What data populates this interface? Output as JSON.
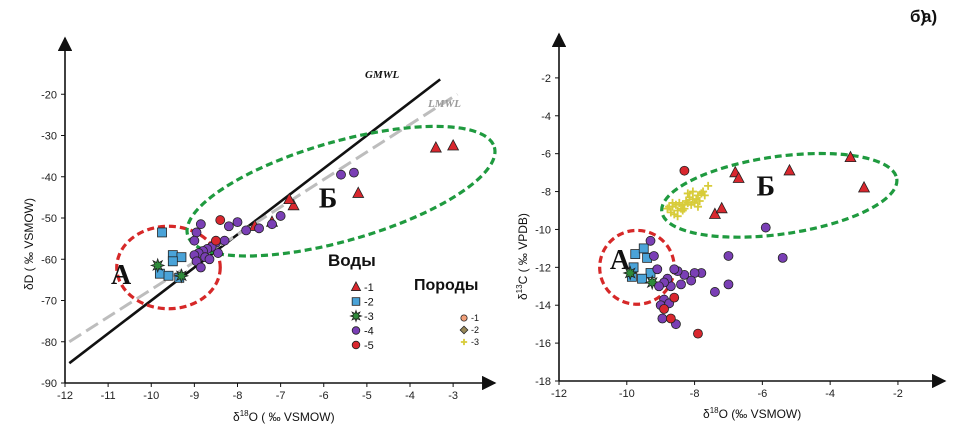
{
  "colors": {
    "red": "#d9272e",
    "blue": "#4aa3d8",
    "green": "#2e8b3a",
    "purple": "#7a3fb5",
    "orange": "#f2a07a",
    "olive": "#9a8a5a",
    "yellow": "#d8cc3a",
    "ellipseRed": "#d62828",
    "ellipseGreen": "#1f9a3f",
    "gmwl": "#111111",
    "lmwl": "#bdbdbd"
  },
  "chart_data": [
    {
      "panel": "а)",
      "type": "scatter",
      "xlabel_main": "δ",
      "xlabel_sup": "18",
      "xlabel_rest": "O ( ‰ VSMOW)",
      "ylabel": "δD ( ‰ VSMOW)",
      "xlim": [
        -12,
        -2.4
      ],
      "ylim": [
        -90,
        -10
      ],
      "xticks": [
        -12,
        -11,
        -10,
        -9,
        -8,
        -7,
        -6,
        -5,
        -4,
        -3
      ],
      "xtick_labels": [
        "-12",
        "-11",
        "-10",
        "-9",
        "-8",
        "-7",
        "-6",
        "-5",
        "-4",
        "-3"
      ],
      "yticks": [
        -90,
        -80,
        -70,
        -60,
        -50,
        -40,
        -30,
        -20
      ],
      "ytick_labels": [
        "-90",
        "-80",
        "-70",
        "-60",
        "-50",
        "-40",
        "-30",
        "-20"
      ],
      "lines": [
        {
          "name": "GMWL",
          "x": [
            -11.9,
            -3.3
          ],
          "y": [
            -85.2,
            -16.4
          ]
        },
        {
          "name": "LMWL",
          "x": [
            -11.9,
            -2.9
          ],
          "y": [
            -80,
            -20
          ]
        }
      ],
      "clusters": [
        {
          "label": "А",
          "cx": -9.6,
          "cy": -62,
          "rx": 1.2,
          "ry": 10,
          "angle": 0,
          "color": "red",
          "label_x": -10.7,
          "label_y": -66
        },
        {
          "label": "Б",
          "cx": -5.6,
          "cy": -43.5,
          "rx": 3.7,
          "ry": 12,
          "angle": -16,
          "color": "green",
          "label_x": -5.9,
          "label_y": -47.5
        }
      ],
      "series": [
        {
          "name": "-1",
          "marker": "triangle",
          "color": "red",
          "x": [
            -3.4,
            -3.0,
            -5.2,
            -6.7,
            -6.8,
            -7.2,
            -7.6
          ],
          "y": [
            -33,
            -32.5,
            -44,
            -47,
            -45.5,
            -51,
            -52
          ]
        },
        {
          "name": "-2",
          "marker": "square",
          "color": "blue",
          "x": [
            -9.75,
            -9.5,
            -9.3,
            -9.5,
            -9.8,
            -9.35,
            -9.6
          ],
          "y": [
            -53.5,
            -59,
            -59.5,
            -60.5,
            -63.5,
            -64.5,
            -64
          ]
        },
        {
          "name": "-3",
          "marker": "star",
          "color": "green",
          "x": [
            -9.85,
            -9.3
          ],
          "y": [
            -61.5,
            -64
          ]
        },
        {
          "name": "-4",
          "marker": "circle",
          "color": "purple",
          "x": [
            -5.6,
            -5.3,
            -7.0,
            -7.2,
            -7.5,
            -7.8,
            -8.0,
            -8.2,
            -8.3,
            -8.5,
            -8.6,
            -8.7,
            -8.8,
            -8.9,
            -9.0,
            -8.75,
            -8.85,
            -8.95,
            -9.0,
            -8.95,
            -8.85,
            -8.65,
            -8.45
          ],
          "y": [
            -39.5,
            -39,
            -49.5,
            -51.5,
            -52.5,
            -53,
            -51,
            -52,
            -55.5,
            -56,
            -57,
            -57.5,
            -58,
            -58.5,
            -59,
            -59.5,
            -51.5,
            -53.5,
            -55.5,
            -60.5,
            -62,
            -60,
            -58.5
          ]
        },
        {
          "name": "-5",
          "marker": "circle",
          "color": "red",
          "x": [
            -8.4,
            -8.5
          ],
          "y": [
            -50.5,
            -55.5
          ]
        }
      ],
      "legend_title": "Воды",
      "legend_title2": "Породы",
      "legend_rock": [
        {
          "name": "-1",
          "marker": "circle",
          "color": "orange"
        },
        {
          "name": "-2",
          "marker": "diamond",
          "color": "olive"
        },
        {
          "name": "-3",
          "marker": "plus",
          "color": "yellow"
        }
      ]
    },
    {
      "panel": "б)",
      "type": "scatter",
      "xlabel_main": "δ",
      "xlabel_sup": "18",
      "xlabel_rest": "O (‰ VSMOW)",
      "ylabel_main": "δ",
      "ylabel_sup": "13",
      "ylabel_rest": "C ( ‰ VPDB)",
      "xlim": [
        -12,
        -0.7
      ],
      "ylim": [
        -18,
        0
      ],
      "xticks": [
        -12,
        -10,
        -8,
        -6,
        -4,
        -2
      ],
      "xtick_labels": [
        "-12",
        "-10",
        "-8",
        "-6",
        "-4",
        "-2"
      ],
      "yticks": [
        -18,
        -16,
        -14,
        -12,
        -10,
        -8,
        -6,
        -4,
        -2
      ],
      "ytick_labels": [
        "-18",
        "-16",
        "-14",
        "-12",
        "-10",
        "-8",
        "-6",
        "-4",
        "-2"
      ],
      "clusters": [
        {
          "label": "А",
          "cx": -9.7,
          "cy": -12,
          "rx": 1.1,
          "ry": 1.95,
          "angle": 0,
          "color": "red",
          "label_x": -10.2,
          "label_y": -12.1
        },
        {
          "label": "Б",
          "cx": -5.5,
          "cy": -8.2,
          "rx": 3.5,
          "ry": 2.05,
          "angle": -8,
          "color": "green",
          "label_x": -5.9,
          "label_y": -8.2
        }
      ],
      "series": [
        {
          "name": "-1",
          "marker": "triangle",
          "color": "red",
          "x": [
            -3.4,
            -3.0,
            -5.2,
            -6.8,
            -6.7,
            -7.4,
            -7.2
          ],
          "y": [
            -6.2,
            -7.8,
            -6.9,
            -7.0,
            -7.3,
            -9.2,
            -8.9
          ]
        },
        {
          "name": "-2",
          "marker": "square",
          "color": "blue",
          "x": [
            -9.75,
            -9.5,
            -9.3,
            -9.55,
            -9.8,
            -9.85,
            -9.4
          ],
          "y": [
            -11.3,
            -11.0,
            -12.3,
            -12.6,
            -12.0,
            -12.5,
            -11.5
          ]
        },
        {
          "name": "-3",
          "marker": "star",
          "color": "green",
          "x": [
            -9.9,
            -9.25
          ],
          "y": [
            -12.3,
            -12.8
          ]
        },
        {
          "name": "-4",
          "marker": "circle",
          "color": "purple",
          "x": [
            -5.9,
            -5.4,
            -7.0,
            -7.0,
            -7.4,
            -7.8,
            -8.0,
            -8.1,
            -8.3,
            -8.4,
            -8.5,
            -8.6,
            -8.7,
            -8.8,
            -8.9,
            -8.9,
            -9.0,
            -9.1,
            -9.2,
            -9.3,
            -8.75,
            -8.95,
            -9.05,
            -8.55
          ],
          "y": [
            -9.9,
            -11.5,
            -11.4,
            -12.9,
            -13.3,
            -12.3,
            -12.3,
            -12.7,
            -12.4,
            -12.9,
            -12.2,
            -12.1,
            -13.0,
            -12.6,
            -12.8,
            -13.7,
            -14.0,
            -12.1,
            -11.4,
            -10.6,
            -13.9,
            -14.7,
            -13.0,
            -15.0
          ]
        },
        {
          "name": "-5",
          "marker": "circle",
          "color": "red",
          "x": [
            -8.3,
            -7.9,
            -8.9,
            -8.7,
            -8.6
          ],
          "y": [
            -6.9,
            -15.5,
            -14.2,
            -14.7,
            -13.6
          ]
        },
        {
          "name": "rock-3",
          "marker": "plus",
          "color": "yellow",
          "x": [
            -8.8,
            -8.65,
            -8.5,
            -8.35,
            -8.2,
            -8.05,
            -7.9,
            -7.75,
            -7.6,
            -8.7,
            -8.55,
            -8.4,
            -8.25,
            -8.1,
            -7.95,
            -7.8,
            -8.75,
            -8.6,
            -8.45,
            -8.3,
            -8.15,
            -8.0,
            -7.85,
            -7.7,
            -8.5,
            -8.2,
            -7.9,
            -8.35,
            -8.05,
            -8.65
          ],
          "y": [
            -8.9,
            -8.8,
            -9.0,
            -8.7,
            -8.6,
            -8.4,
            -8.2,
            -8.0,
            -7.7,
            -9.1,
            -8.7,
            -8.9,
            -8.5,
            -8.7,
            -8.4,
            -8.1,
            -8.8,
            -9.2,
            -8.6,
            -8.9,
            -8.3,
            -8.6,
            -8.5,
            -8.2,
            -9.3,
            -8.1,
            -8.8,
            -9.0,
            -8.0,
            -8.6
          ]
        }
      ]
    }
  ]
}
